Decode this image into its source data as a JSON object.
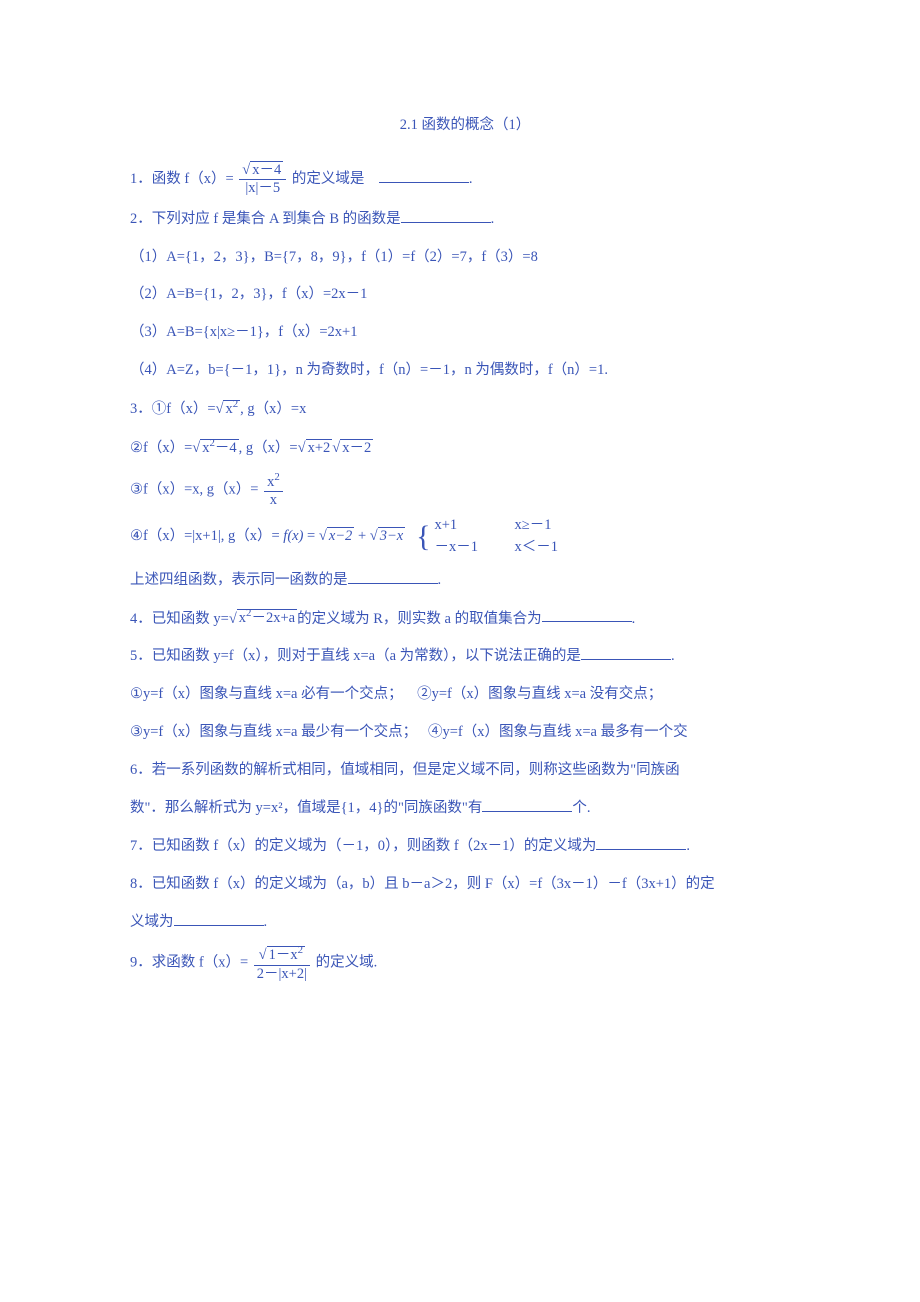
{
  "doc": {
    "title_color": "#3a55b7",
    "background": "#ffffff",
    "title": "2.1 函数的概念（1）",
    "q1_a": "1．函数",
    "q1_fx": "f（x）=",
    "q1_num": "x－4",
    "q1_den": "|x|－5",
    "q1_b": "的定义域是",
    "q1_blank_suffix": ".",
    "q2_head": "2．下列对应 f 是集合 A 到集合 B 的函数是",
    "q2_head_suffix": ".",
    "q2_1": "（1）A={1，2，3}，B={7，8，9}，f（1）=f（2）=7，f（3）=8",
    "q2_2": "（2）A=B={1，2，3}，f（x）=2x－1",
    "q2_3": "（3）A=B={x|x≥－1}，f（x）=2x+1",
    "q2_4": "（4）A=Z，b={－1，1}，n 为奇数时，f（n）=－1，n 为偶数时，f（n）=1.",
    "q3_1a": "3．①f（x）=",
    "q3_1sqrt": "x",
    "q3_1sup": "2",
    "q3_1b": ", g（x）=x",
    "q3_2a": "②f（x）=",
    "q3_2sqrt1": "x",
    "q3_2sup1": "2",
    "q3_2mid": "－4",
    "q3_2b": ", g（x）=",
    "q3_2sqrt2": "x+2",
    "q3_2sqrt3": "x－2",
    "q3_3a": "③f（x）=x, g（x）=",
    "q3_3num": "x",
    "q3_3sup": "2",
    "q3_3den": "x",
    "q3_4a": "④f（x）=|x+1|, g（x）= ",
    "q3_4fx": "f(x)",
    "q3_4eq": " = ",
    "q3_4s1": "x−2",
    "q3_4plus": " + ",
    "q3_4s2": "3−x",
    "q3_4p1a": "x+1",
    "q3_4p1b": "x≥－1",
    "q3_4p2a": "－x－1",
    "q3_4p2b": "x＜－1",
    "q3_tail": "上述四组函数，表示同一函数的是",
    "q3_tail_suffix": ".",
    "q4a": "4．已知函数 y=",
    "q4sqrt": "x",
    "q4sup": "2",
    "q4mid": "－2x+a",
    "q4b": "的定义域为 R，则实数 a 的取值集合为",
    "q4_suffix": ".",
    "q5_head": "5．已知函数 y=f（x），则对于直线 x=a（a 为常数），以下说法正确的是",
    "q5_suffix": ".",
    "q5_1": "①y=f（x）图象与直线 x=a 必有一个交点；",
    "q5_2": "②y=f（x）图象与直线 x=a 没有交点；",
    "q5_3": "③y=f（x）图象与直线 x=a 最少有一个交点；",
    "q5_4": "④y=f（x）图象与直线 x=a 最多有一个交",
    "q6a": "6．若一系列函数的解析式相同，值域相同，但是定义域不同，则称这些函数为\"同族函",
    "q6b": "数\"．那么解析式为 y=x²，值域是{1，4}的\"同族函数\"有",
    "q6c": "个.",
    "q7a": "7．已知函数 f（x）的定义域为（－1，0），则函数 f（2x－1）的定义域为",
    "q7_suffix": ".",
    "q8a": "8．已知函数 f（x）的定义域为（a，b）且 b－a＞2，则 F（x）=f（3x－1）－f（3x+1）的定",
    "q8b": "义域为",
    "q8_suffix": ".",
    "q9a": "9．求函数 f（x）=",
    "q9num_pre": "1－x",
    "q9num_sup": "2",
    "q9den": "2－|x+2|",
    "q9b": "的定义域."
  }
}
